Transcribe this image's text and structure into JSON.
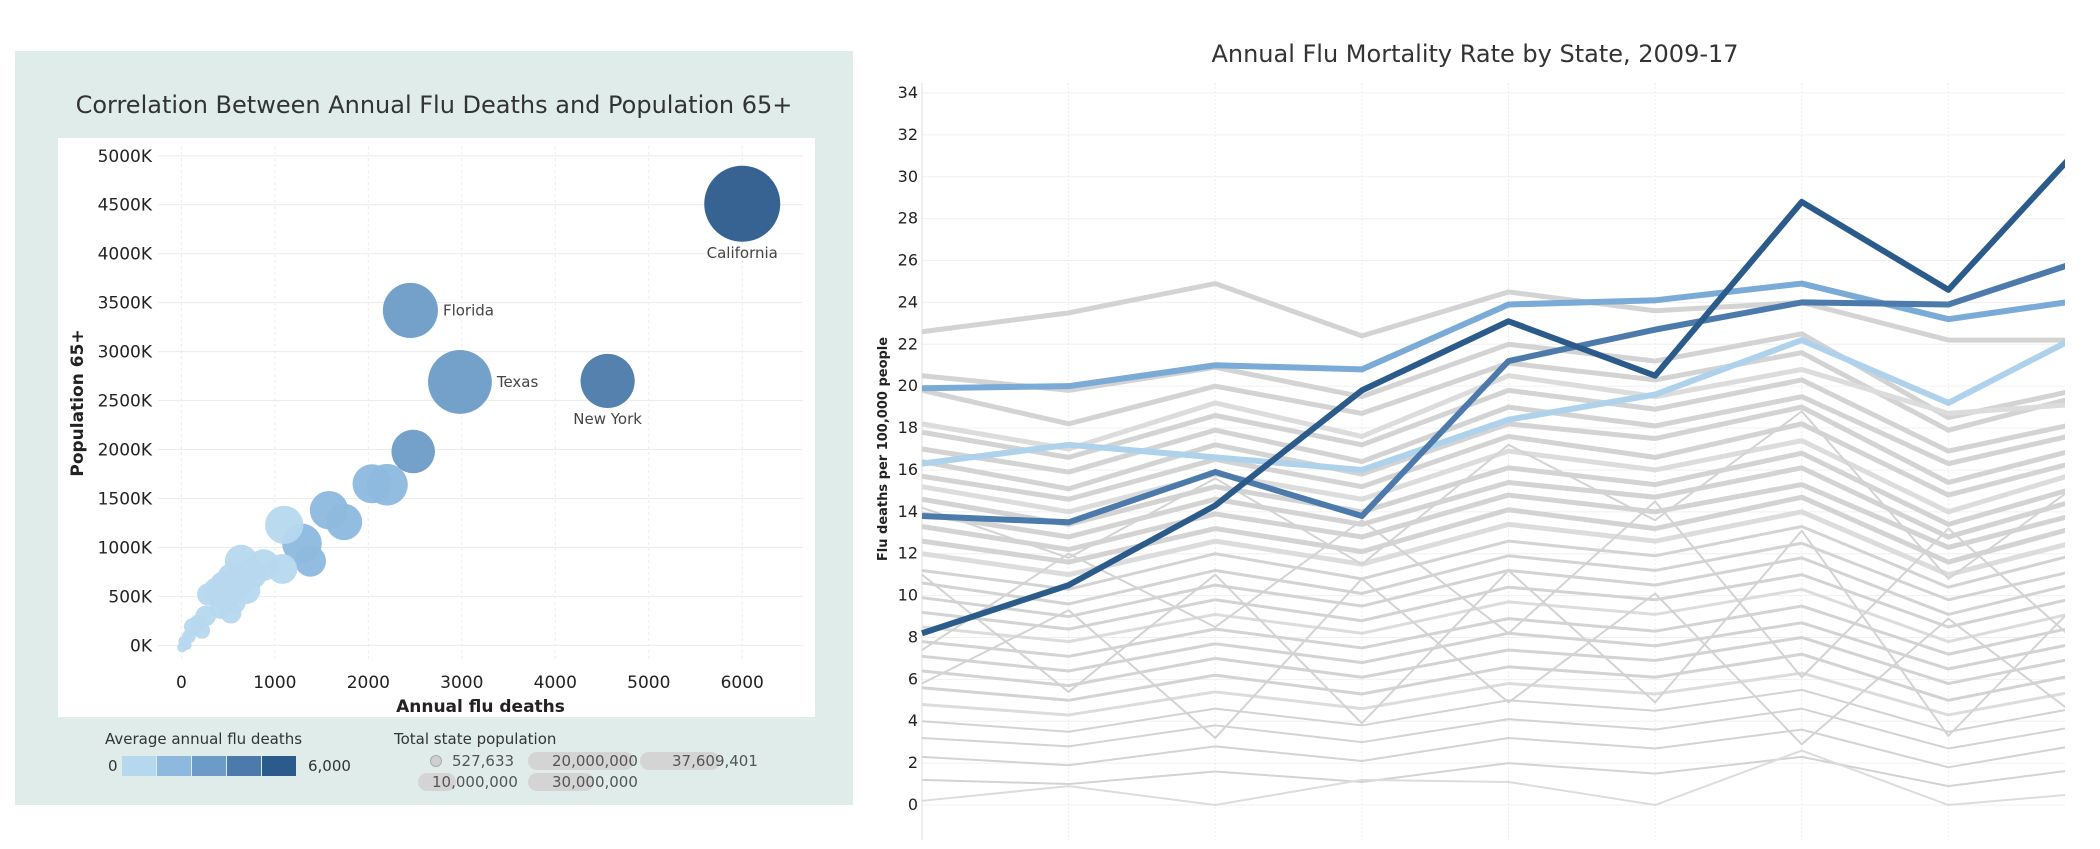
{
  "chart_data": [
    {
      "type": "scatter",
      "title": "Correlation Between Annual Flu Deaths and Population 65+",
      "xlabel": "Annual flu deaths",
      "ylabel": "Population 65+",
      "xlim": [
        -250,
        6650
      ],
      "ylim": [
        -150,
        5100
      ],
      "x_ticks": [
        "0",
        "1000",
        "2000",
        "3000",
        "4000",
        "5000",
        "6000"
      ],
      "x_tick_values": [
        0,
        1000,
        2000,
        3000,
        4000,
        5000,
        6000
      ],
      "y_ticks": [
        "0K",
        "500K",
        "1000K",
        "1500K",
        "2000K",
        "2500K",
        "3000K",
        "3500K",
        "4000K",
        "4500K",
        "5000K"
      ],
      "y_tick_values": [
        0,
        500,
        1000,
        1500,
        2000,
        2500,
        3000,
        3500,
        4000,
        4500,
        5000
      ],
      "grid": true,
      "points": [
        {
          "x": 6000,
          "y": 4510,
          "pop": 39000000,
          "label": "California",
          "color": "#2b5b8b"
        },
        {
          "x": 2450,
          "y": 3420,
          "pop": 20500000,
          "label": "Florida",
          "color": "#6b9cc7"
        },
        {
          "x": 2980,
          "y": 2690,
          "pop": 27500000,
          "label": "Texas",
          "color": "#6b9cc7"
        },
        {
          "x": 4560,
          "y": 2700,
          "pop": 19800000,
          "label": "New York",
          "color": "#4c7aab"
        },
        {
          "x": 2480,
          "y": 1980,
          "pop": 12800000,
          "label": "",
          "color": "#6b9cc7"
        },
        {
          "x": 2200,
          "y": 1640,
          "pop": 11700000,
          "label": "",
          "color": "#8db9de"
        },
        {
          "x": 2040,
          "y": 1650,
          "pop": 10300000,
          "label": "",
          "color": "#8db9de"
        },
        {
          "x": 1580,
          "y": 1380,
          "pop": 10000000,
          "label": "",
          "color": "#8db9de"
        },
        {
          "x": 1740,
          "y": 1260,
          "pop": 8900000,
          "label": "",
          "color": "#8db9de"
        },
        {
          "x": 1100,
          "y": 1230,
          "pop": 9900000,
          "label": "",
          "color": "#b6d8ee"
        },
        {
          "x": 1290,
          "y": 1040,
          "pop": 10600000,
          "label": "",
          "color": "#8db9de"
        },
        {
          "x": 1380,
          "y": 860,
          "pop": 6600000,
          "label": "",
          "color": "#8db9de"
        },
        {
          "x": 640,
          "y": 860,
          "pop": 7200000,
          "label": "",
          "color": "#b6d8ee"
        },
        {
          "x": 880,
          "y": 820,
          "pop": 6700000,
          "label": "",
          "color": "#b6d8ee"
        },
        {
          "x": 1080,
          "y": 780,
          "pop": 6000000,
          "label": "",
          "color": "#b6d8ee"
        },
        {
          "x": 750,
          "y": 730,
          "pop": 6500000,
          "label": "",
          "color": "#b6d8ee"
        },
        {
          "x": 540,
          "y": 690,
          "pop": 5800000,
          "label": "",
          "color": "#b6d8ee"
        },
        {
          "x": 620,
          "y": 640,
          "pop": 5300000,
          "label": "",
          "color": "#b6d8ee"
        },
        {
          "x": 700,
          "y": 560,
          "pop": 4900000,
          "label": "",
          "color": "#b6d8ee"
        },
        {
          "x": 450,
          "y": 620,
          "pop": 4800000,
          "label": "",
          "color": "#b6d8ee"
        },
        {
          "x": 380,
          "y": 560,
          "pop": 4700000,
          "label": "",
          "color": "#b6d8ee"
        },
        {
          "x": 470,
          "y": 480,
          "pop": 4400000,
          "label": "",
          "color": "#b6d8ee"
        },
        {
          "x": 560,
          "y": 440,
          "pop": 3900000,
          "label": "",
          "color": "#b6d8ee"
        },
        {
          "x": 290,
          "y": 520,
          "pop": 3500000,
          "label": "",
          "color": "#b6d8ee"
        },
        {
          "x": 420,
          "y": 380,
          "pop": 3100000,
          "label": "",
          "color": "#b6d8ee"
        },
        {
          "x": 530,
          "y": 330,
          "pop": 3000000,
          "label": "",
          "color": "#b6d8ee"
        },
        {
          "x": 260,
          "y": 300,
          "pop": 2900000,
          "label": "",
          "color": "#b6d8ee"
        },
        {
          "x": 120,
          "y": 190,
          "pop": 2000000,
          "label": "",
          "color": "#b6d8ee"
        },
        {
          "x": 220,
          "y": 150,
          "pop": 1800000,
          "label": "",
          "color": "#b6d8ee"
        },
        {
          "x": 80,
          "y": 90,
          "pop": 1300000,
          "label": "",
          "color": "#b6d8ee"
        },
        {
          "x": 180,
          "y": 230,
          "pop": 1900000,
          "label": "",
          "color": "#b6d8ee"
        },
        {
          "x": 30,
          "y": 40,
          "pop": 900000,
          "label": "",
          "color": "#b6d8ee"
        },
        {
          "x": 10,
          "y": -20,
          "pop": 700000,
          "label": "",
          "color": "#b6d8ee"
        },
        {
          "x": 60,
          "y": 0,
          "pop": 600000,
          "label": "",
          "color": "#b6d8ee"
        }
      ],
      "legend": {
        "color_title": "Average annual flu deaths",
        "color_min": "0",
        "color_max": "6,000",
        "color_ramp": [
          "#b6d8ee",
          "#8db9de",
          "#6b9cc7",
          "#4c7aab",
          "#2b5b8b"
        ],
        "size_title": "Total state population",
        "size_items": [
          {
            "label": "527,633",
            "pop": 527633
          },
          {
            "label": "20,000,000",
            "pop": 20000000
          },
          {
            "label": "37,609,401",
            "pop": 37609401
          },
          {
            "label": "10,000,000",
            "pop": 10000000
          },
          {
            "label": "30,000,000",
            "pop": 30000000
          }
        ]
      }
    },
    {
      "type": "line",
      "title": "Annual Flu Mortality Rate by State, 2009-17",
      "ylabel": "Flu deaths per 100,000 people",
      "xlabel": "",
      "ylim": [
        0,
        34
      ],
      "y_ticks": [
        "0",
        "2",
        "4",
        "6",
        "8",
        "10",
        "12",
        "14",
        "16",
        "18",
        "20",
        "22",
        "24",
        "26",
        "28",
        "30",
        "32",
        "34"
      ],
      "x_count": 9,
      "grid": true,
      "highlighted_series": [
        {
          "color": "#2b5b8b",
          "values": [
            8.2,
            10.5,
            14.3,
            19.8,
            23.1,
            20.5,
            28.8,
            24.6,
            32.2
          ]
        },
        {
          "color": "#4c7aab",
          "values": [
            13.8,
            13.5,
            15.9,
            13.8,
            21.2,
            22.7,
            24.0,
            23.9,
            26.2
          ]
        },
        {
          "color": "#7aaad6",
          "values": [
            19.9,
            20.0,
            21.0,
            20.8,
            23.9,
            24.1,
            24.9,
            23.2,
            24.2
          ]
        },
        {
          "color": "#aed2ec",
          "values": [
            16.3,
            17.2,
            16.6,
            16.0,
            18.4,
            19.6,
            22.2,
            19.2,
            22.8
          ]
        }
      ],
      "background_series": [
        [
          22.6,
          23.5,
          24.9,
          22.4,
          24.5,
          23.6,
          24.0,
          22.2,
          22.2
        ],
        [
          20.5,
          19.8,
          20.9,
          19.5,
          22.0,
          21.2,
          22.5,
          18.5,
          20.0
        ],
        [
          19.8,
          18.2,
          20.0,
          18.7,
          21.1,
          20.3,
          21.6,
          17.9,
          19.7
        ],
        [
          18.2,
          17.0,
          19.2,
          17.6,
          20.5,
          19.5,
          20.8,
          18.7,
          19.2
        ],
        [
          17.8,
          16.6,
          18.6,
          17.2,
          19.8,
          18.9,
          20.3,
          16.9,
          18.4
        ],
        [
          17.0,
          15.9,
          17.9,
          16.4,
          19.0,
          18.1,
          19.5,
          16.3,
          17.9
        ],
        [
          16.4,
          15.1,
          17.2,
          15.8,
          18.2,
          17.5,
          19.0,
          15.4,
          17.2
        ],
        [
          15.7,
          14.6,
          16.5,
          15.2,
          17.6,
          16.6,
          18.2,
          14.8,
          16.6
        ],
        [
          15.2,
          14.0,
          15.8,
          14.6,
          16.9,
          16.0,
          17.4,
          14.0,
          16.1
        ],
        [
          14.6,
          13.4,
          15.2,
          14.0,
          16.1,
          15.3,
          16.8,
          13.4,
          15.4
        ],
        [
          13.9,
          12.8,
          14.6,
          13.4,
          15.4,
          14.7,
          16.1,
          12.8,
          14.8
        ],
        [
          13.3,
          12.2,
          13.9,
          12.8,
          14.8,
          14.0,
          15.3,
          12.3,
          14.1
        ],
        [
          12.6,
          11.6,
          13.2,
          12.1,
          14.1,
          13.2,
          14.7,
          11.6,
          13.5
        ],
        [
          12.0,
          11.0,
          12.6,
          11.5,
          13.4,
          12.6,
          14.0,
          11.0,
          12.8
        ],
        [
          11.2,
          10.3,
          12.0,
          10.8,
          12.6,
          11.9,
          13.3,
          10.4,
          12.2
        ],
        [
          10.6,
          9.6,
          11.2,
          10.1,
          11.9,
          11.2,
          12.5,
          9.8,
          11.4
        ],
        [
          9.9,
          9.0,
          10.5,
          9.5,
          11.2,
          10.5,
          11.8,
          9.1,
          10.8
        ],
        [
          9.2,
          8.4,
          9.8,
          8.8,
          10.4,
          9.8,
          11.0,
          8.5,
          10.1
        ],
        [
          8.5,
          7.8,
          9.1,
          8.2,
          9.7,
          9.1,
          10.3,
          7.8,
          9.4
        ],
        [
          7.8,
          7.1,
          8.4,
          7.5,
          8.9,
          8.3,
          9.5,
          7.2,
          8.7
        ],
        [
          7.1,
          6.4,
          7.7,
          6.8,
          8.2,
          7.6,
          8.7,
          6.5,
          7.9
        ],
        [
          6.4,
          5.7,
          7.0,
          6.1,
          7.4,
          6.9,
          8.0,
          5.8,
          7.2
        ],
        [
          5.6,
          5.0,
          6.2,
          5.3,
          6.6,
          6.1,
          7.2,
          5.0,
          6.4
        ],
        [
          4.8,
          4.3,
          5.4,
          4.6,
          5.8,
          5.3,
          6.3,
          4.3,
          5.6
        ],
        [
          4.0,
          3.5,
          4.6,
          3.8,
          5.0,
          4.5,
          5.5,
          3.5,
          4.8
        ],
        [
          3.2,
          2.8,
          3.8,
          3.0,
          4.1,
          3.6,
          4.6,
          2.7,
          3.9
        ],
        [
          2.3,
          1.9,
          2.8,
          2.1,
          3.2,
          2.7,
          3.6,
          1.8,
          3.0
        ],
        [
          1.2,
          1.0,
          1.6,
          1.1,
          2.0,
          1.5,
          2.3,
          0.9,
          1.8
        ],
        [
          0.2,
          0.9,
          0.0,
          1.2,
          1.1,
          0.0,
          2.6,
          0.0,
          0.6
        ],
        [
          11.0,
          5.4,
          11.0,
          3.9,
          11.2,
          4.9,
          13.1,
          3.3,
          10.5
        ],
        [
          5.8,
          9.3,
          3.2,
          10.8,
          4.9,
          10.1,
          2.9,
          8.9,
          3.6
        ],
        [
          14.2,
          11.8,
          15.6,
          11.5,
          17.2,
          13.6,
          18.8,
          10.8,
          15.9
        ],
        [
          7.4,
          12.0,
          8.5,
          13.6,
          8.2,
          14.5,
          6.1,
          13.2,
          7.0
        ]
      ]
    }
  ]
}
